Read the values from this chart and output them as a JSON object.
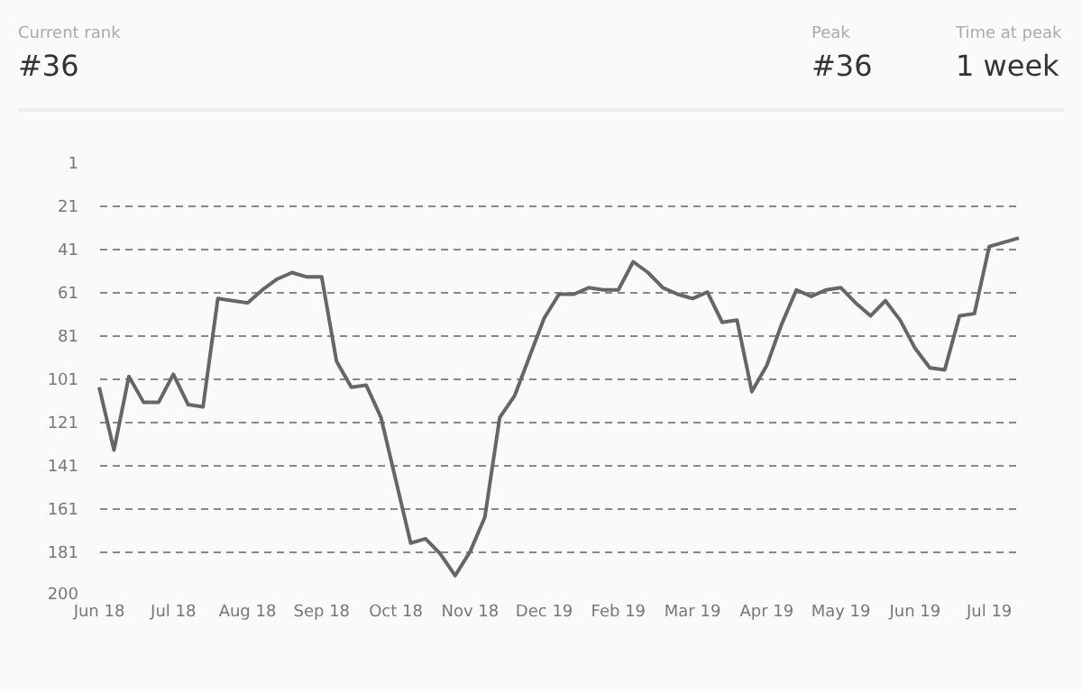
{
  "chart_data": {
    "type": "line",
    "annotations": [
      "Current rank",
      "#36",
      "Peak",
      "#36",
      "Time at peak",
      "1 week"
    ],
    "categories": [
      "Jun 18",
      null,
      null,
      null,
      null,
      "Jul 18",
      null,
      null,
      null,
      null,
      "Aug 18",
      null,
      null,
      null,
      null,
      "Sep 18",
      null,
      null,
      null,
      null,
      "Oct 18",
      null,
      null,
      null,
      null,
      "Nov 18",
      null,
      null,
      null,
      null,
      "Dec 19",
      null,
      null,
      null,
      null,
      "Feb 19",
      null,
      null,
      null,
      null,
      "Mar 19",
      null,
      null,
      null,
      null,
      "Apr 19",
      null,
      null,
      null,
      null,
      "May 19",
      null,
      null,
      null,
      null,
      "Jun 19",
      null,
      null,
      null,
      null,
      "Jul 19",
      null,
      null
    ],
    "series": [
      {
        "color": "#666666",
        "values": [
          105,
          134,
          100,
          112,
          112,
          99,
          113,
          114,
          64,
          65,
          66,
          60,
          55,
          52,
          54,
          54,
          93,
          105,
          104,
          119,
          148,
          177,
          175,
          182,
          192,
          181,
          165,
          119,
          109,
          91,
          73,
          62,
          62,
          59,
          60,
          60,
          47,
          52,
          59,
          62,
          64,
          61,
          75,
          74,
          107,
          95,
          76,
          60,
          63,
          60,
          59,
          66,
          72,
          65,
          74,
          87,
          96,
          97,
          72,
          71,
          40,
          38,
          36
        ]
      }
    ],
    "ylim": [
      200,
      1
    ],
    "yticks": [
      1,
      21,
      41,
      61,
      81,
      101,
      121,
      141,
      161,
      181,
      200
    ],
    "grid": "y",
    "marker": "none"
  }
}
